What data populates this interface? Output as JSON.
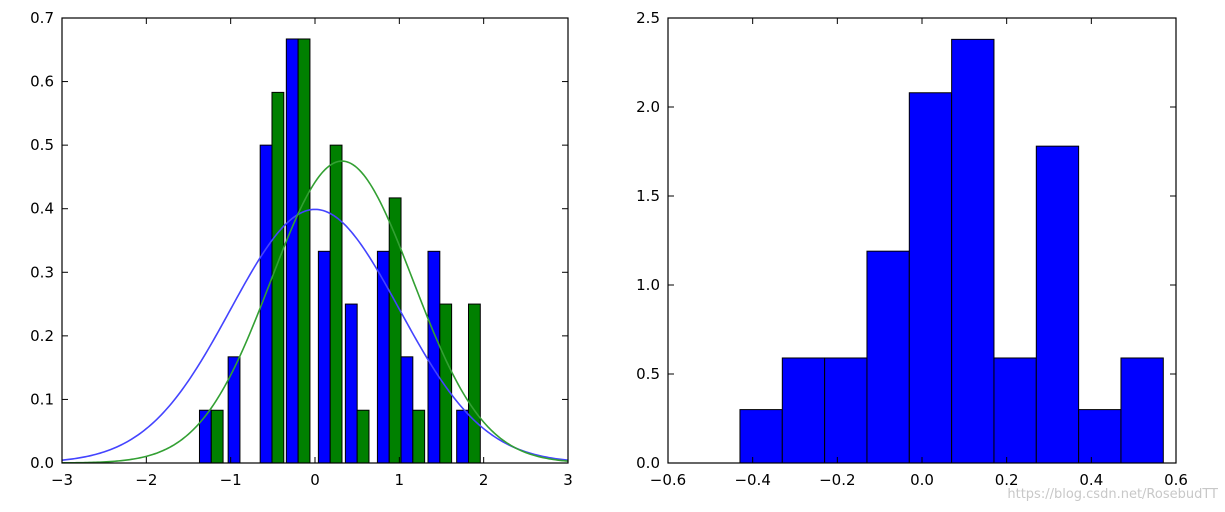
{
  "chart_data": [
    {
      "type": "bar",
      "subtype": "grouped-histogram-with-density-curves",
      "xlim": [
        -3,
        3
      ],
      "ylim": [
        0,
        0.7
      ],
      "xticks": [
        "−3",
        "−2",
        "−1",
        "0",
        "1",
        "2",
        "3"
      ],
      "yticks": [
        "0.0",
        "0.1",
        "0.2",
        "0.3",
        "0.4",
        "0.5",
        "0.6",
        "0.7"
      ],
      "xtick_values": [
        -3,
        -2,
        -1,
        0,
        1,
        2,
        3
      ],
      "ytick_values": [
        0,
        0.1,
        0.2,
        0.3,
        0.4,
        0.5,
        0.6,
        0.7
      ],
      "bin_centers": [
        -1.23,
        -0.89,
        -0.51,
        -0.2,
        0.18,
        0.5,
        0.88,
        1.16,
        1.48,
        1.82
      ],
      "bar_width_data": 0.14,
      "series": [
        {
          "color": "#0000ff",
          "values": [
            0.083,
            0.167,
            0.5,
            0.667,
            0.333,
            0.25,
            0.333,
            0.167,
            0.333,
            0.083
          ]
        },
        {
          "color": "#008000",
          "values": [
            0.083,
            0.0,
            0.583,
            0.667,
            0.5,
            0.083,
            0.417,
            0.083,
            0.25,
            0.25
          ]
        }
      ],
      "curves": [
        {
          "kind": "normal-pdf",
          "mean": 0.0,
          "std": 1.0,
          "color": "#4444ff"
        },
        {
          "kind": "normal-pdf",
          "mean": 0.32,
          "std": 0.84,
          "color": "#33a033"
        }
      ],
      "grid": false,
      "legend": "none"
    },
    {
      "type": "bar",
      "subtype": "histogram",
      "xlim": [
        -0.6,
        0.6
      ],
      "ylim": [
        0,
        2.5
      ],
      "xticks": [
        "−0.6",
        "−0.4",
        "−0.2",
        "0.0",
        "0.2",
        "0.4",
        "0.6"
      ],
      "yticks": [
        "0.0",
        "0.5",
        "1.0",
        "1.5",
        "2.0",
        "2.5"
      ],
      "xtick_values": [
        -0.6,
        -0.4,
        -0.2,
        0.0,
        0.2,
        0.4,
        0.6
      ],
      "ytick_values": [
        0,
        0.5,
        1.0,
        1.5,
        2.0,
        2.5
      ],
      "bin_edges": [
        -0.43,
        -0.33,
        -0.23,
        -0.13,
        -0.03,
        0.07,
        0.17,
        0.27,
        0.37,
        0.47,
        0.57
      ],
      "values": [
        0.3,
        0.59,
        0.59,
        1.19,
        2.08,
        2.38,
        0.59,
        1.78,
        0.3,
        0.59
      ],
      "color": "#0000ff",
      "grid": false,
      "legend": "none"
    }
  ],
  "watermark": "https://blog.csdn.net/RosebudTT"
}
